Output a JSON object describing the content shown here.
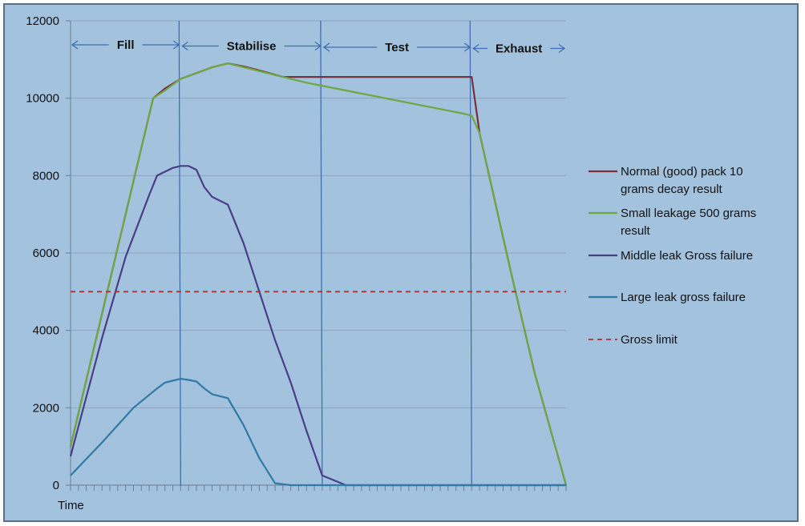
{
  "chart_data": {
    "type": "line",
    "xlabel": "Time",
    "ylabel": "",
    "ylim": [
      0,
      12000
    ],
    "yticks": [
      "0",
      "2000",
      "4000",
      "6000",
      "8000",
      "10000",
      "12000"
    ],
    "xlim": [
      0,
      63
    ],
    "grid": "horizontal",
    "legend_position": "right",
    "phases": [
      {
        "label": "Fill",
        "start": 0,
        "end": 14
      },
      {
        "label": "Stabilise",
        "start": 14,
        "end": 32
      },
      {
        "label": "Test",
        "start": 32,
        "end": 51
      },
      {
        "label": "Exhaust",
        "start": 51,
        "end": 63
      }
    ],
    "phase_markers": [
      14,
      32,
      51
    ],
    "series": [
      {
        "name": "Normal (good) pack 10 grams decay result",
        "color": "#7b2f3b",
        "x": [
          0,
          10.5,
          12,
          14,
          16,
          18,
          20,
          22,
          24,
          27,
          30,
          35,
          40,
          45,
          51,
          52,
          53,
          56,
          59,
          63
        ],
        "y": [
          1000,
          10000,
          10250,
          10500,
          10650,
          10800,
          10900,
          10820,
          10720,
          10550,
          10550,
          10550,
          10550,
          10550,
          10550,
          9100,
          8200,
          5500,
          2900,
          0
        ]
      },
      {
        "name": "Small leakage 500 grams result",
        "color": "#6fa843",
        "x": [
          0,
          10.5,
          12,
          14,
          16,
          18,
          20,
          22,
          24,
          27,
          30,
          35,
          40,
          45,
          50,
          51,
          52,
          53,
          56,
          59,
          63
        ],
        "y": [
          1000,
          10000,
          10200,
          10500,
          10650,
          10800,
          10900,
          10800,
          10700,
          10550,
          10400,
          10200,
          10000,
          9800,
          9600,
          9550,
          9100,
          8200,
          5500,
          2900,
          0
        ]
      },
      {
        "name": "Middle leak Gross    failure",
        "color": "#4b3d87",
        "x": [
          0,
          4,
          7,
          10,
          11,
          12,
          13,
          14,
          15,
          16,
          17,
          18,
          20,
          22,
          24,
          26,
          28,
          30,
          32,
          35,
          36,
          37,
          63
        ],
        "y": [
          750,
          3800,
          5900,
          7500,
          8000,
          8100,
          8200,
          8250,
          8250,
          8150,
          7700,
          7450,
          7250,
          6250,
          5000,
          3750,
          2650,
          1400,
          250,
          0,
          0,
          0,
          0
        ]
      },
      {
        "name": "Large leak gross    failure",
        "color": "#2f7aa6",
        "x": [
          0,
          4,
          8,
          11,
          12,
          13,
          14,
          15,
          16,
          17,
          18,
          20,
          22,
          24,
          26,
          28,
          30,
          63
        ],
        "y": [
          250,
          1100,
          2000,
          2500,
          2650,
          2700,
          2750,
          2720,
          2680,
          2500,
          2350,
          2250,
          1550,
          700,
          50,
          0,
          0,
          0
        ]
      },
      {
        "name": "Gross limit",
        "color": "#b0302f",
        "dashed": true,
        "x": [
          0,
          63
        ],
        "y": [
          5000,
          5000
        ]
      }
    ]
  }
}
